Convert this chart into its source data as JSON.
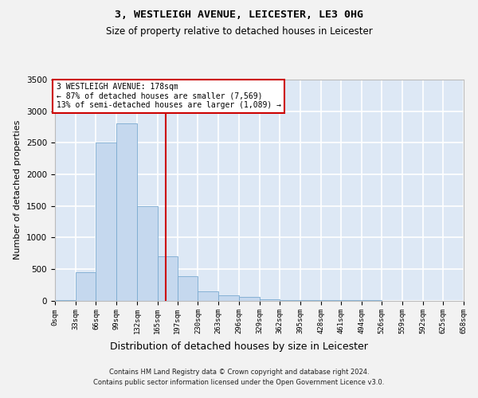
{
  "title1": "3, WESTLEIGH AVENUE, LEICESTER, LE3 0HG",
  "title2": "Size of property relative to detached houses in Leicester",
  "xlabel": "Distribution of detached houses by size in Leicester",
  "ylabel": "Number of detached properties",
  "bar_values": [
    5,
    450,
    2500,
    2800,
    1500,
    700,
    380,
    150,
    80,
    60,
    25,
    10,
    5,
    2,
    1,
    1,
    0,
    0,
    0,
    0
  ],
  "bin_edges": [
    0,
    33,
    66,
    99,
    132,
    165,
    197,
    230,
    263,
    296,
    329,
    362,
    395,
    428,
    461,
    494,
    526,
    559,
    592,
    625,
    658
  ],
  "tick_labels": [
    "0sqm",
    "33sqm",
    "66sqm",
    "99sqm",
    "132sqm",
    "165sqm",
    "197sqm",
    "230sqm",
    "263sqm",
    "296sqm",
    "329sqm",
    "362sqm",
    "395sqm",
    "428sqm",
    "461sqm",
    "494sqm",
    "526sqm",
    "559sqm",
    "592sqm",
    "625sqm",
    "658sqm"
  ],
  "bar_color": "#c5d8ee",
  "bar_edge_color": "#7aaad0",
  "vline_x": 178,
  "vline_color": "#cc0000",
  "annotation_line1": "3 WESTLEIGH AVENUE: 178sqm",
  "annotation_line2": "← 87% of detached houses are smaller (7,569)",
  "annotation_line3": "13% of semi-detached houses are larger (1,089) →",
  "annotation_box_edgecolor": "#cc0000",
  "ylim": [
    0,
    3500
  ],
  "yticks": [
    0,
    500,
    1000,
    1500,
    2000,
    2500,
    3000,
    3500
  ],
  "plot_bg_color": "#dde8f5",
  "grid_color": "#ffffff",
  "fig_bg_color": "#f2f2f2",
  "footer1": "Contains HM Land Registry data © Crown copyright and database right 2024.",
  "footer2": "Contains public sector information licensed under the Open Government Licence v3.0.",
  "title1_fontsize": 9.5,
  "title2_fontsize": 8.5,
  "ylabel_fontsize": 8,
  "xlabel_fontsize": 9,
  "tick_fontsize": 6.5,
  "ytick_fontsize": 7.5,
  "ann_fontsize": 7,
  "footer_fontsize": 6
}
